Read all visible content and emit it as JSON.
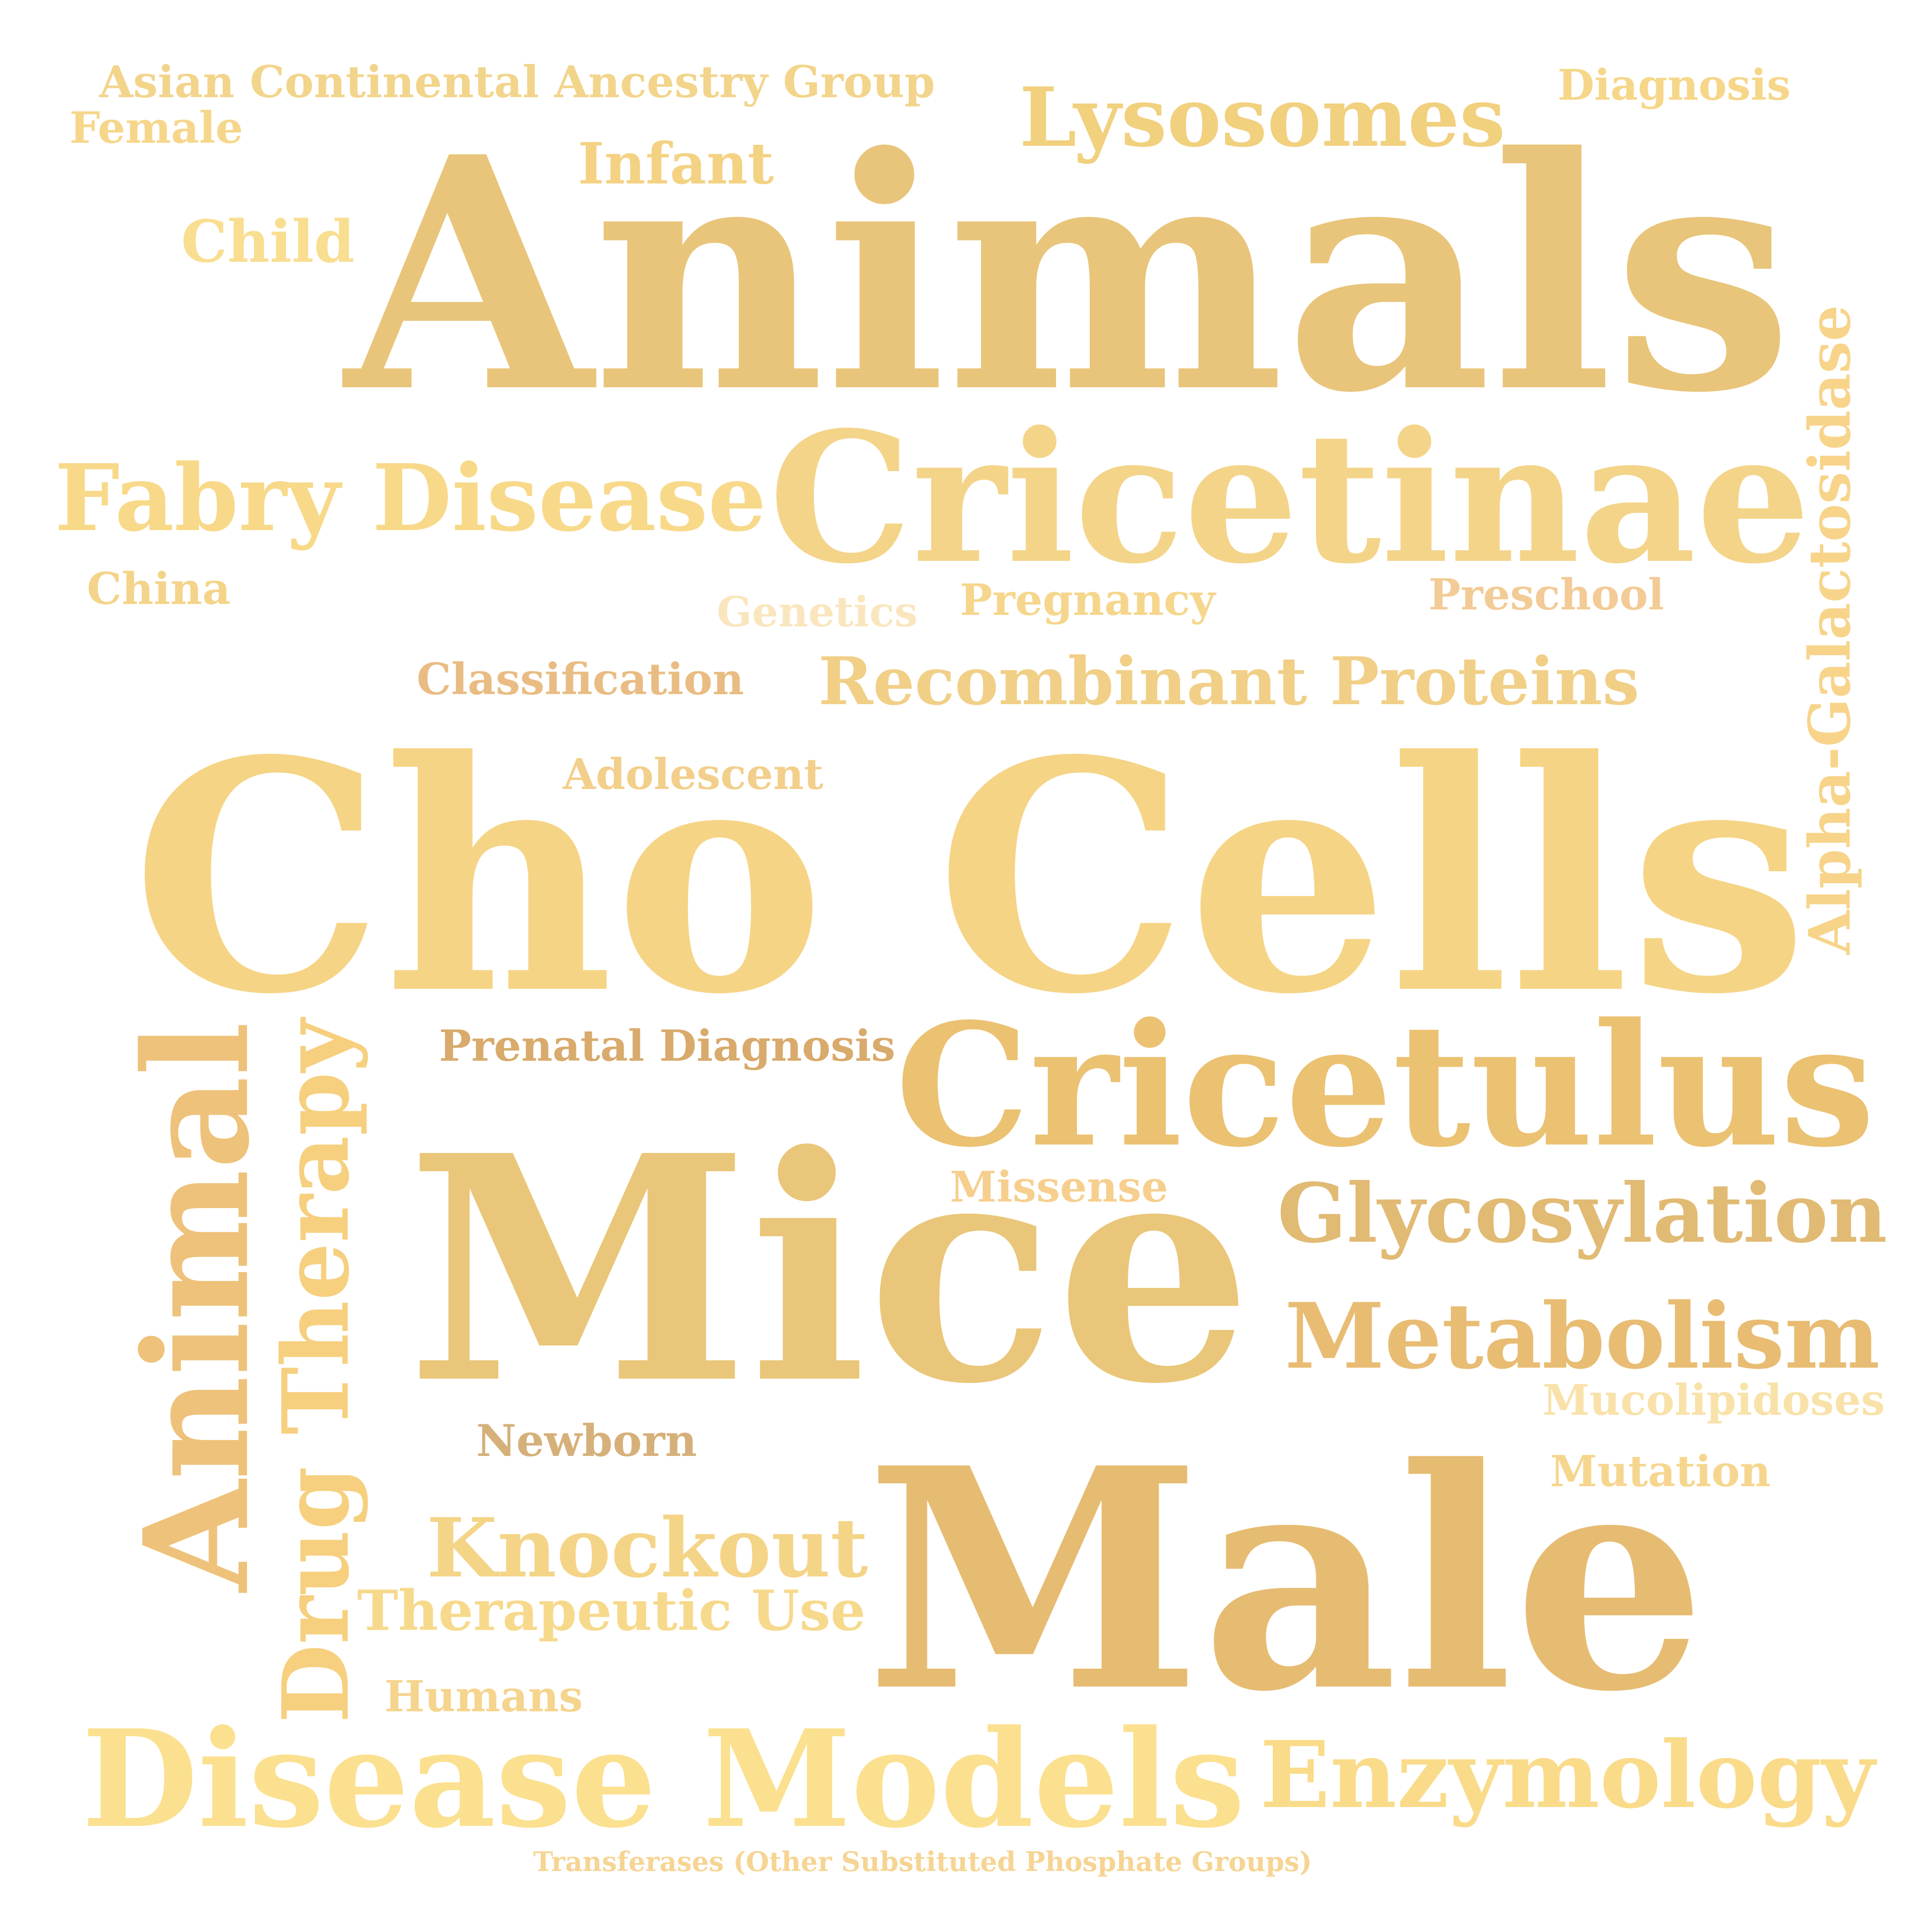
{
  "word_cloud": {
    "words": [
      {
        "text": "Animals",
        "color": "#E8C57A"
      },
      {
        "text": "Cho Cells",
        "color": "#F5D485"
      },
      {
        "text": "Mice",
        "color": "#E9C679"
      },
      {
        "text": "Male",
        "color": "#E6BC72"
      },
      {
        "text": "Cricetinae",
        "color": "#F3D489"
      },
      {
        "text": "Cricetulus",
        "color": "#EBC172"
      },
      {
        "text": "Disease Models",
        "color": "#FBE08F"
      },
      {
        "text": "Animal",
        "color": "#EEC27A"
      },
      {
        "text": "Lysosomes",
        "color": "#F1D07E"
      },
      {
        "text": "Fabry Disease",
        "color": "#F8D989"
      },
      {
        "text": "Recombinant Proteins",
        "color": "#F1CF87"
      },
      {
        "text": "Glycosylation",
        "color": "#E1BA74"
      },
      {
        "text": "Metabolism",
        "color": "#E8BC72"
      },
      {
        "text": "Enzymology",
        "color": "#FADB8A"
      },
      {
        "text": "Knockout",
        "color": "#F4D486"
      },
      {
        "text": "Drug Therapy",
        "color": "#F6D07F"
      },
      {
        "text": "Therapeutic Use",
        "color": "#F7D98C"
      },
      {
        "text": "Alpha-Galactosidase",
        "color": "#F7D48A"
      },
      {
        "text": "Asian Continental Ancestry Group",
        "color": "#F2D48B"
      },
      {
        "text": "Female",
        "color": "#F6D68A"
      },
      {
        "text": "Diagnosis",
        "color": "#F6D689"
      },
      {
        "text": "Infant",
        "color": "#F4D283"
      },
      {
        "text": "Child",
        "color": "#F9DE91"
      },
      {
        "text": "China",
        "color": "#F4D48A"
      },
      {
        "text": "Genetics",
        "color": "#FAE6BE"
      },
      {
        "text": "Pregnancy",
        "color": "#F5D68C"
      },
      {
        "text": "Preschool",
        "color": "#F3CB96"
      },
      {
        "text": "Classification",
        "color": "#E9BC83"
      },
      {
        "text": "Adolescent",
        "color": "#F2CF8B"
      },
      {
        "text": "Prenatal Diagnosis",
        "color": "#D8AA6B"
      },
      {
        "text": "Missense",
        "color": "#F6CF8E"
      },
      {
        "text": "Mucolipidoses",
        "color": "#F9E2A9"
      },
      {
        "text": "Mutation",
        "color": "#F6D68F"
      },
      {
        "text": "Newborn",
        "color": "#D6B07A"
      },
      {
        "text": "Humans",
        "color": "#F5D48D"
      },
      {
        "text": "Transferases (Other Substituted Phosphate Groups)",
        "color": "#F6D493"
      }
    ]
  }
}
